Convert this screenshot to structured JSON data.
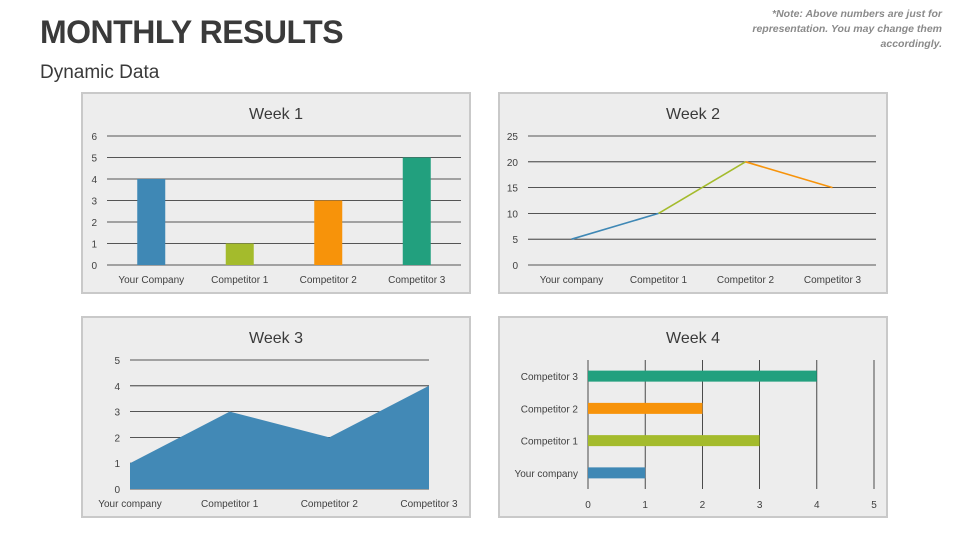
{
  "header": {
    "title": "MONTHLY RESULTS",
    "subtitle": "Dynamic Data",
    "note": "*Note: Above numbers are just for representation. You may change them accordingly."
  },
  "chart_data": [
    {
      "type": "bar",
      "title": "Week 1",
      "categories": [
        "Your Company",
        "Competitor 1",
        "Competitor 2",
        "Competitor 3"
      ],
      "values": [
        4,
        1,
        3,
        5
      ],
      "colors": [
        "#3f88b5",
        "#a4bb2c",
        "#f7930a",
        "#22a07e"
      ],
      "yticks": [
        "0",
        "1",
        "2",
        "3",
        "4",
        "5",
        "6"
      ],
      "ylim": [
        0,
        6
      ],
      "grid": true
    },
    {
      "type": "line",
      "title": "Week 2",
      "categories": [
        "Your company",
        "Competitor 1",
        "Competitor 2",
        "Competitor 3"
      ],
      "values": [
        5,
        10,
        20,
        15
      ],
      "colors": [
        "#3f88b5",
        "#a4bb2c",
        "#f7930a"
      ],
      "yticks": [
        "0",
        "5",
        "10",
        "15",
        "20",
        "25"
      ],
      "ylim": [
        0,
        25
      ],
      "grid": true
    },
    {
      "type": "area",
      "title": "Week 3",
      "categories": [
        "Your company",
        "Competitor 1",
        "Competitor 2",
        "Competitor 3"
      ],
      "values": [
        1,
        3,
        2,
        4
      ],
      "colors": [
        "#4289b6"
      ],
      "yticks": [
        "0",
        "1",
        "2",
        "3",
        "4",
        "5"
      ],
      "ylim": [
        0,
        5
      ],
      "grid": true
    },
    {
      "type": "bar",
      "orientation": "horizontal",
      "title": "Week 4",
      "categories": [
        "Your company",
        "Competitor 1",
        "Competitor 2",
        "Competitor 3"
      ],
      "values": [
        1,
        3,
        2,
        4
      ],
      "colors": [
        "#3f88b5",
        "#a4bb2c",
        "#f7930a",
        "#22a07e"
      ],
      "xticks": [
        "0",
        "1",
        "2",
        "3",
        "4",
        "5"
      ],
      "xlim": [
        0,
        5
      ],
      "grid": true
    }
  ]
}
